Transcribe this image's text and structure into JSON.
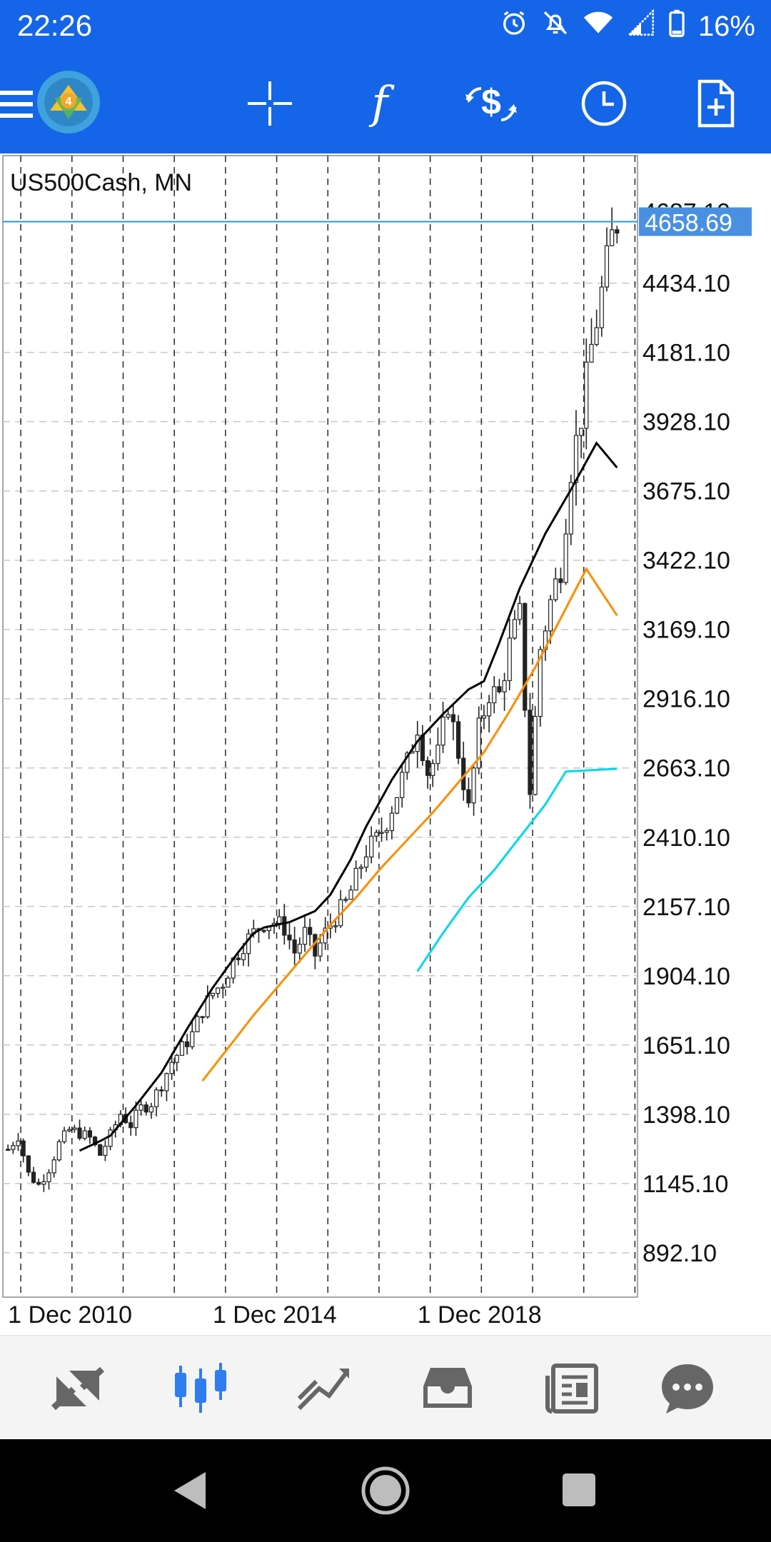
{
  "status_bar": {
    "time": "22:26",
    "battery": "16%",
    "icons": [
      "alarm-icon",
      "mute-icon",
      "wifi-icon",
      "signal-icon",
      "battery-icon"
    ]
  },
  "app_bar": {
    "icons": [
      "menu-icon",
      "app-logo-icon",
      "crosshair-icon",
      "indicators-icon",
      "trade-icon",
      "timeframe-icon",
      "new-order-icon"
    ]
  },
  "chart": {
    "symbol_label": "US500Cash, MN",
    "current_price": "4658.69",
    "partial_top_label": "4687.10",
    "colors": {
      "price_line": "#2196f3",
      "badge_bg": "#4a90e2",
      "ma1": "#000000",
      "ma2": "#ff8c00",
      "ma3": "#00d8e8",
      "candles": "#222222",
      "grid": "#9a9a9a"
    }
  },
  "chart_data": {
    "type": "line",
    "title": "US500Cash, MN",
    "timeframe": "MN",
    "y_ticks": [
      "4434.10",
      "4181.10",
      "3928.10",
      "3675.10",
      "3422.10",
      "3169.10",
      "2916.10",
      "2663.10",
      "2410.10",
      "2157.10",
      "1904.10",
      "1651.10",
      "1398.10",
      "1145.10",
      "892.10"
    ],
    "x_ticks": [
      "1 Dec 2010",
      "1 Dec 2014",
      "1 Dec 2018"
    ],
    "ylim": [
      730,
      4900
    ],
    "xlim": [
      2009.9,
      2022.3
    ],
    "grid": true,
    "current_price": 4658.69,
    "candles": {
      "description": "monthly OHLC candles approximated as close path",
      "close": [
        [
          2010.0,
          1270
        ],
        [
          2010.2,
          1320
        ],
        [
          2010.4,
          1180
        ],
        [
          2010.6,
          1140
        ],
        [
          2010.8,
          1200
        ],
        [
          2011.0,
          1290
        ],
        [
          2011.2,
          1340
        ],
        [
          2011.4,
          1330
        ],
        [
          2011.6,
          1310
        ],
        [
          2011.8,
          1250
        ],
        [
          2012.0,
          1320
        ],
        [
          2012.2,
          1400
        ],
        [
          2012.4,
          1360
        ],
        [
          2012.6,
          1420
        ],
        [
          2012.8,
          1440
        ],
        [
          2013.0,
          1510
        ],
        [
          2013.2,
          1590
        ],
        [
          2013.4,
          1640
        ],
        [
          2013.6,
          1690
        ],
        [
          2013.8,
          1780
        ],
        [
          2014.0,
          1840
        ],
        [
          2014.2,
          1880
        ],
        [
          2014.4,
          1960
        ],
        [
          2014.6,
          2020
        ],
        [
          2014.8,
          2060
        ],
        [
          2015.0,
          2100
        ],
        [
          2015.2,
          2100
        ],
        [
          2015.4,
          2080
        ],
        [
          2015.6,
          1990
        ],
        [
          2015.8,
          2060
        ],
        [
          2016.0,
          1980
        ],
        [
          2016.2,
          2060
        ],
        [
          2016.4,
          2120
        ],
        [
          2016.6,
          2170
        ],
        [
          2016.8,
          2260
        ],
        [
          2017.0,
          2360
        ],
        [
          2017.2,
          2400
        ],
        [
          2017.4,
          2470
        ],
        [
          2017.6,
          2570
        ],
        [
          2017.8,
          2680
        ],
        [
          2018.0,
          2820
        ],
        [
          2018.2,
          2650
        ],
        [
          2018.4,
          2710
        ],
        [
          2018.6,
          2900
        ],
        [
          2018.8,
          2720
        ],
        [
          2019.0,
          2510
        ],
        [
          2019.2,
          2800
        ],
        [
          2019.4,
          2940
        ],
        [
          2019.6,
          2930
        ],
        [
          2019.8,
          3110
        ],
        [
          2020.0,
          3220
        ],
        [
          2020.2,
          2580
        ],
        [
          2020.4,
          3100
        ],
        [
          2020.6,
          3270
        ],
        [
          2020.8,
          3400
        ],
        [
          2021.0,
          3760
        ],
        [
          2021.2,
          3950
        ],
        [
          2021.4,
          4200
        ],
        [
          2021.6,
          4400
        ],
        [
          2021.8,
          4600
        ],
        [
          2021.9,
          4658.69
        ]
      ]
    },
    "series": [
      {
        "color": "#000000",
        "values": [
          [
            2011.4,
            1265
          ],
          [
            2011.8,
            1300
          ],
          [
            2012.0,
            1320
          ],
          [
            2012.5,
            1430
          ],
          [
            2013.0,
            1550
          ],
          [
            2013.5,
            1710
          ],
          [
            2014.0,
            1860
          ],
          [
            2014.5,
            1990
          ],
          [
            2014.8,
            2060
          ],
          [
            2015.0,
            2080
          ],
          [
            2015.5,
            2100
          ],
          [
            2016.0,
            2140
          ],
          [
            2016.3,
            2200
          ],
          [
            2016.7,
            2330
          ],
          [
            2017.0,
            2450
          ],
          [
            2017.5,
            2620
          ],
          [
            2018.0,
            2760
          ],
          [
            2018.5,
            2860
          ],
          [
            2019.0,
            2950
          ],
          [
            2019.3,
            2980
          ],
          [
            2019.6,
            3120
          ],
          [
            2020.0,
            3320
          ],
          [
            2020.5,
            3520
          ],
          [
            2021.0,
            3680
          ],
          [
            2021.5,
            3850
          ],
          [
            2021.9,
            3760
          ]
        ]
      },
      {
        "color": "#ff8c00",
        "values": [
          [
            2013.8,
            1520
          ],
          [
            2014.3,
            1640
          ],
          [
            2014.8,
            1760
          ],
          [
            2015.3,
            1870
          ],
          [
            2015.8,
            1980
          ],
          [
            2016.3,
            2090
          ],
          [
            2016.8,
            2190
          ],
          [
            2017.3,
            2300
          ],
          [
            2017.8,
            2400
          ],
          [
            2018.3,
            2500
          ],
          [
            2018.8,
            2610
          ],
          [
            2019.3,
            2720
          ],
          [
            2019.8,
            2870
          ],
          [
            2020.3,
            3030
          ],
          [
            2020.8,
            3210
          ],
          [
            2021.3,
            3390
          ],
          [
            2021.9,
            3220
          ]
        ]
      },
      {
        "color": "#00d8e8",
        "values": [
          [
            2018.0,
            1920
          ],
          [
            2018.5,
            2060
          ],
          [
            2019.0,
            2190
          ],
          [
            2019.5,
            2290
          ],
          [
            2020.0,
            2410
          ],
          [
            2020.5,
            2530
          ],
          [
            2020.9,
            2650
          ],
          [
            2021.9,
            2660
          ]
        ]
      }
    ]
  },
  "bottom_nav": {
    "tabs": [
      "quotes-icon",
      "chart-tab-icon",
      "trade-tab-icon",
      "history-icon",
      "news-icon",
      "chat-icon"
    ],
    "active": "chart-tab-icon",
    "active_color": "#2f7df0",
    "inactive_color": "#666666"
  },
  "system_nav": {
    "buttons": [
      "back-button",
      "home-button",
      "recents-button"
    ]
  }
}
